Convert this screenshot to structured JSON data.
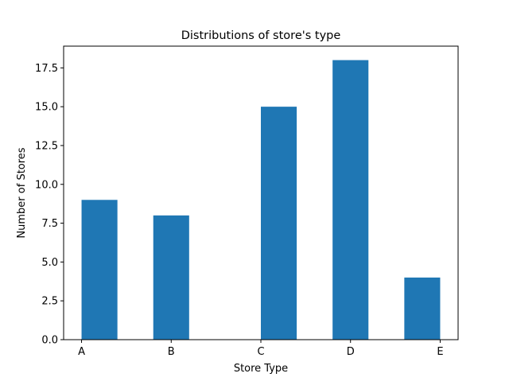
{
  "chart_data": {
    "type": "bar",
    "title": "Distributions of store's type",
    "xlabel": "Store Type",
    "ylabel": "Number of Stores",
    "ylim": [
      0,
      18.9
    ],
    "grid": false,
    "bar_color": "#1f77b4",
    "bars": [
      {
        "x_left": 0.0,
        "x_right": 0.4,
        "value": 9
      },
      {
        "x_left": 0.8,
        "x_right": 1.2,
        "value": 8
      },
      {
        "x_left": 1.2,
        "x_right": 1.6,
        "value": 0
      },
      {
        "x_left": 2.0,
        "x_right": 2.4,
        "value": 15
      },
      {
        "x_left": 2.8,
        "x_right": 3.2,
        "value": 18
      },
      {
        "x_left": 3.6,
        "x_right": 4.0,
        "value": 4
      }
    ],
    "xlim": [
      -0.2,
      4.2
    ],
    "x_ticks": [
      {
        "label": "A",
        "value": 0
      },
      {
        "label": "B",
        "value": 1
      },
      {
        "label": "C",
        "value": 2
      },
      {
        "label": "D",
        "value": 3
      },
      {
        "label": "E",
        "value": 4
      }
    ],
    "y_ticks": [
      {
        "label": "0.0",
        "value": 0
      },
      {
        "label": "2.5",
        "value": 2.5
      },
      {
        "label": "5.0",
        "value": 5
      },
      {
        "label": "7.5",
        "value": 7.5
      },
      {
        "label": "10.0",
        "value": 10
      },
      {
        "label": "12.5",
        "value": 12.5
      },
      {
        "label": "15.0",
        "value": 15
      },
      {
        "label": "17.5",
        "value": 17.5
      }
    ]
  }
}
